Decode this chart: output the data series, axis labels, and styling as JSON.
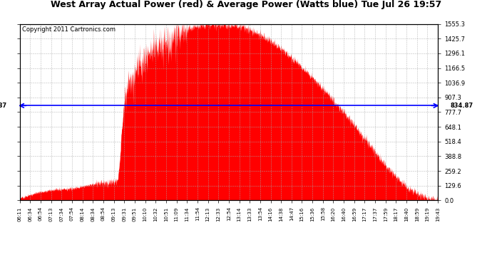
{
  "title": "West Array Actual Power (red) & Average Power (Watts blue) Tue Jul 26 19:57",
  "copyright": "Copyright 2011 Cartronics.com",
  "average_power": 834.87,
  "y_max": 1555.3,
  "y_ticks": [
    0.0,
    129.6,
    259.2,
    388.8,
    518.4,
    648.1,
    777.7,
    907.3,
    1036.9,
    1166.5,
    1296.1,
    1425.7,
    1555.3
  ],
  "fill_color": "#FF0000",
  "line_color": "#0000FF",
  "bg_color": "#FFFFFF",
  "grid_color": "#AAAAAA",
  "title_fontsize": 9,
  "copyright_fontsize": 6,
  "avg_label_fontsize": 6,
  "x_labels": [
    "06:11",
    "06:34",
    "06:54",
    "07:13",
    "07:34",
    "07:54",
    "08:14",
    "08:34",
    "08:54",
    "09:13",
    "09:31",
    "09:51",
    "10:10",
    "10:32",
    "10:51",
    "11:09",
    "11:34",
    "11:54",
    "12:13",
    "12:33",
    "12:54",
    "13:14",
    "13:33",
    "13:54",
    "14:16",
    "14:38",
    "14:47",
    "15:16",
    "15:36",
    "15:58",
    "16:20",
    "16:40",
    "16:59",
    "17:17",
    "17:37",
    "17:59",
    "18:17",
    "18:40",
    "18:59",
    "19:19",
    "19:43"
  ],
  "curve_times": [
    0.0,
    0.015,
    0.03,
    0.045,
    0.06,
    0.075,
    0.09,
    0.105,
    0.12,
    0.135,
    0.15,
    0.16,
    0.17,
    0.18,
    0.195,
    0.21,
    0.22,
    0.235,
    0.25,
    0.265,
    0.28,
    0.295,
    0.31,
    0.325,
    0.34,
    0.355,
    0.37,
    0.385,
    0.4,
    0.415,
    0.43,
    0.445,
    0.46,
    0.475,
    0.49,
    0.505,
    0.52,
    0.535,
    0.55,
    0.565,
    0.58,
    0.595,
    0.61,
    0.625,
    0.64,
    0.655,
    0.67,
    0.685,
    0.7,
    0.715,
    0.73,
    0.745,
    0.76,
    0.775,
    0.79,
    0.805,
    0.82,
    0.835,
    0.85,
    0.865,
    0.88,
    0.895,
    0.91,
    0.925,
    0.94,
    0.955,
    0.97,
    0.985,
    1.0
  ],
  "curve_values": [
    20,
    35,
    55,
    70,
    80,
    90,
    95,
    100,
    100,
    110,
    120,
    130,
    140,
    150,
    160,
    155,
    160,
    170,
    900,
    1050,
    1150,
    1200,
    1280,
    1350,
    1370,
    1400,
    1420,
    1480,
    1510,
    1530,
    1545,
    1550,
    1555,
    1555,
    1550,
    1545,
    1540,
    1530,
    1500,
    1480,
    1450,
    1420,
    1380,
    1340,
    1290,
    1240,
    1190,
    1140,
    1080,
    1020,
    960,
    900,
    840,
    780,
    710,
    640,
    570,
    500,
    430,
    360,
    290,
    230,
    170,
    120,
    80,
    50,
    25,
    10,
    0
  ]
}
